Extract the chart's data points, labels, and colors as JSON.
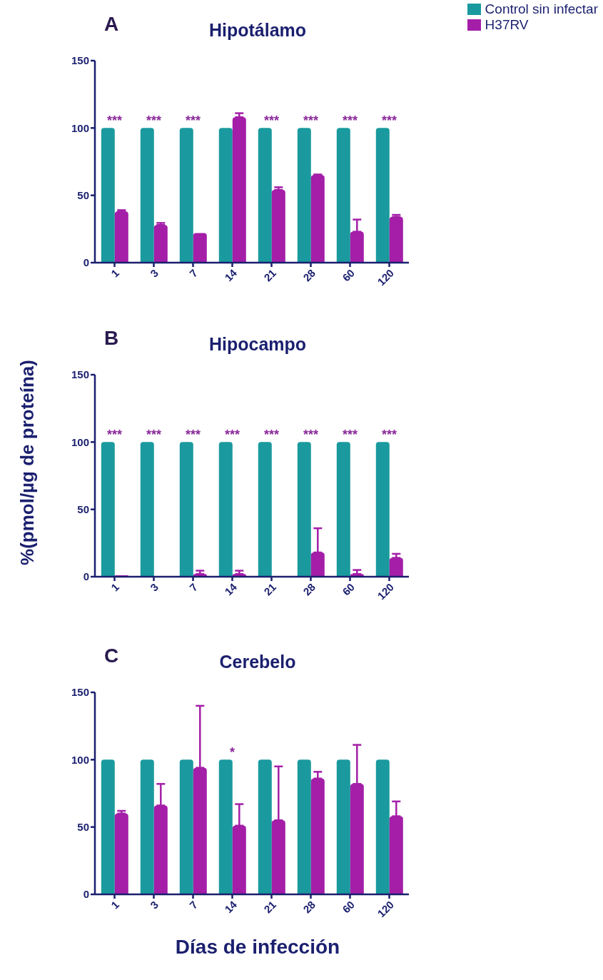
{
  "chart_data": [
    {
      "type": "bar",
      "title": "Hipotálamo",
      "categories": [
        "1",
        "3",
        "7",
        "14",
        "21",
        "28",
        "60",
        "120"
      ],
      "series": [
        {
          "name": "Control sin infectar",
          "color": "#1a9a9e",
          "values": [
            100,
            100,
            100,
            100,
            100,
            100,
            100,
            100
          ]
        },
        {
          "name": "H37RV",
          "color": "#a41ea8",
          "values": [
            38,
            28,
            22,
            108,
            54,
            65,
            23,
            34
          ],
          "errors": [
            [
              38,
              39
            ],
            [
              28,
              29.5
            ],
            null,
            [
              108,
              111
            ],
            [
              54,
              56
            ],
            [
              65,
              65.5
            ],
            [
              23,
              32
            ],
            [
              34,
              35.5
            ]
          ]
        }
      ],
      "ylim": [
        0,
        150
      ],
      "yticks": [
        0,
        50,
        100,
        150
      ],
      "grid": false,
      "legend": "top right",
      "annotations": [
        "A",
        {
          "text": "***",
          "x": "1",
          "y": 100
        },
        {
          "text": "***",
          "x": "3",
          "y": 100
        },
        {
          "text": "***",
          "x": "7",
          "y": 100
        },
        {
          "text": "***",
          "x": "21",
          "y": 100
        },
        {
          "text": "***",
          "x": "28",
          "y": 100
        },
        {
          "text": "***",
          "x": "60",
          "y": 100
        },
        {
          "text": "***",
          "x": "120",
          "y": 100
        }
      ]
    },
    {
      "type": "bar",
      "title": "Hipocampo",
      "ylabel": "%(pmol/µg de proteína)",
      "categories": [
        "1",
        "3",
        "7",
        "14",
        "21",
        "28",
        "60",
        "120"
      ],
      "series": [
        {
          "color": "#1a9a9e",
          "values": [
            100,
            100,
            100,
            100,
            100,
            100,
            100,
            100
          ]
        },
        {
          "color": "#a41ea8",
          "values": [
            1,
            0,
            2,
            2,
            0,
            18,
            2,
            14
          ],
          "errors": [
            null,
            null,
            [
              2,
              4.5
            ],
            [
              2,
              4.5
            ],
            null,
            [
              18,
              36
            ],
            [
              2,
              5
            ],
            [
              14,
              17
            ]
          ]
        }
      ],
      "ylim": [
        0,
        150
      ],
      "yticks": [
        0,
        50,
        100,
        150
      ],
      "grid": false,
      "annotations": [
        "B",
        {
          "text": "***",
          "x": "1",
          "y": 100
        },
        {
          "text": "***",
          "x": "3",
          "y": 100
        },
        {
          "text": "***",
          "x": "7",
          "y": 100
        },
        {
          "text": "***",
          "x": "14",
          "y": 100
        },
        {
          "text": "***",
          "x": "21",
          "y": 100
        },
        {
          "text": "***",
          "x": "28",
          "y": 100
        },
        {
          "text": "***",
          "x": "60",
          "y": 100
        },
        {
          "text": "***",
          "x": "120",
          "y": 100
        }
      ]
    },
    {
      "type": "bar",
      "title": "Cerebelo",
      "xlabel": "Días de infección",
      "categories": [
        "1",
        "3",
        "7",
        "14",
        "21",
        "28",
        "60",
        "120"
      ],
      "series": [
        {
          "color": "#1a9a9e",
          "values": [
            100,
            100,
            100,
            100,
            100,
            100,
            100,
            100
          ]
        },
        {
          "color": "#a41ea8",
          "values": [
            60,
            66,
            94,
            51,
            55,
            86,
            82,
            58
          ],
          "errors": [
            [
              60,
              62
            ],
            [
              66,
              82
            ],
            [
              94,
              140
            ],
            [
              51,
              67
            ],
            [
              55,
              95
            ],
            [
              86,
              91
            ],
            [
              82,
              111
            ],
            [
              58,
              69
            ]
          ]
        }
      ],
      "ylim": [
        0,
        150
      ],
      "yticks": [
        0,
        50,
        100,
        150
      ],
      "grid": false,
      "annotations": [
        "C",
        {
          "text": "*",
          "x": "14",
          "y": 100
        }
      ]
    }
  ]
}
